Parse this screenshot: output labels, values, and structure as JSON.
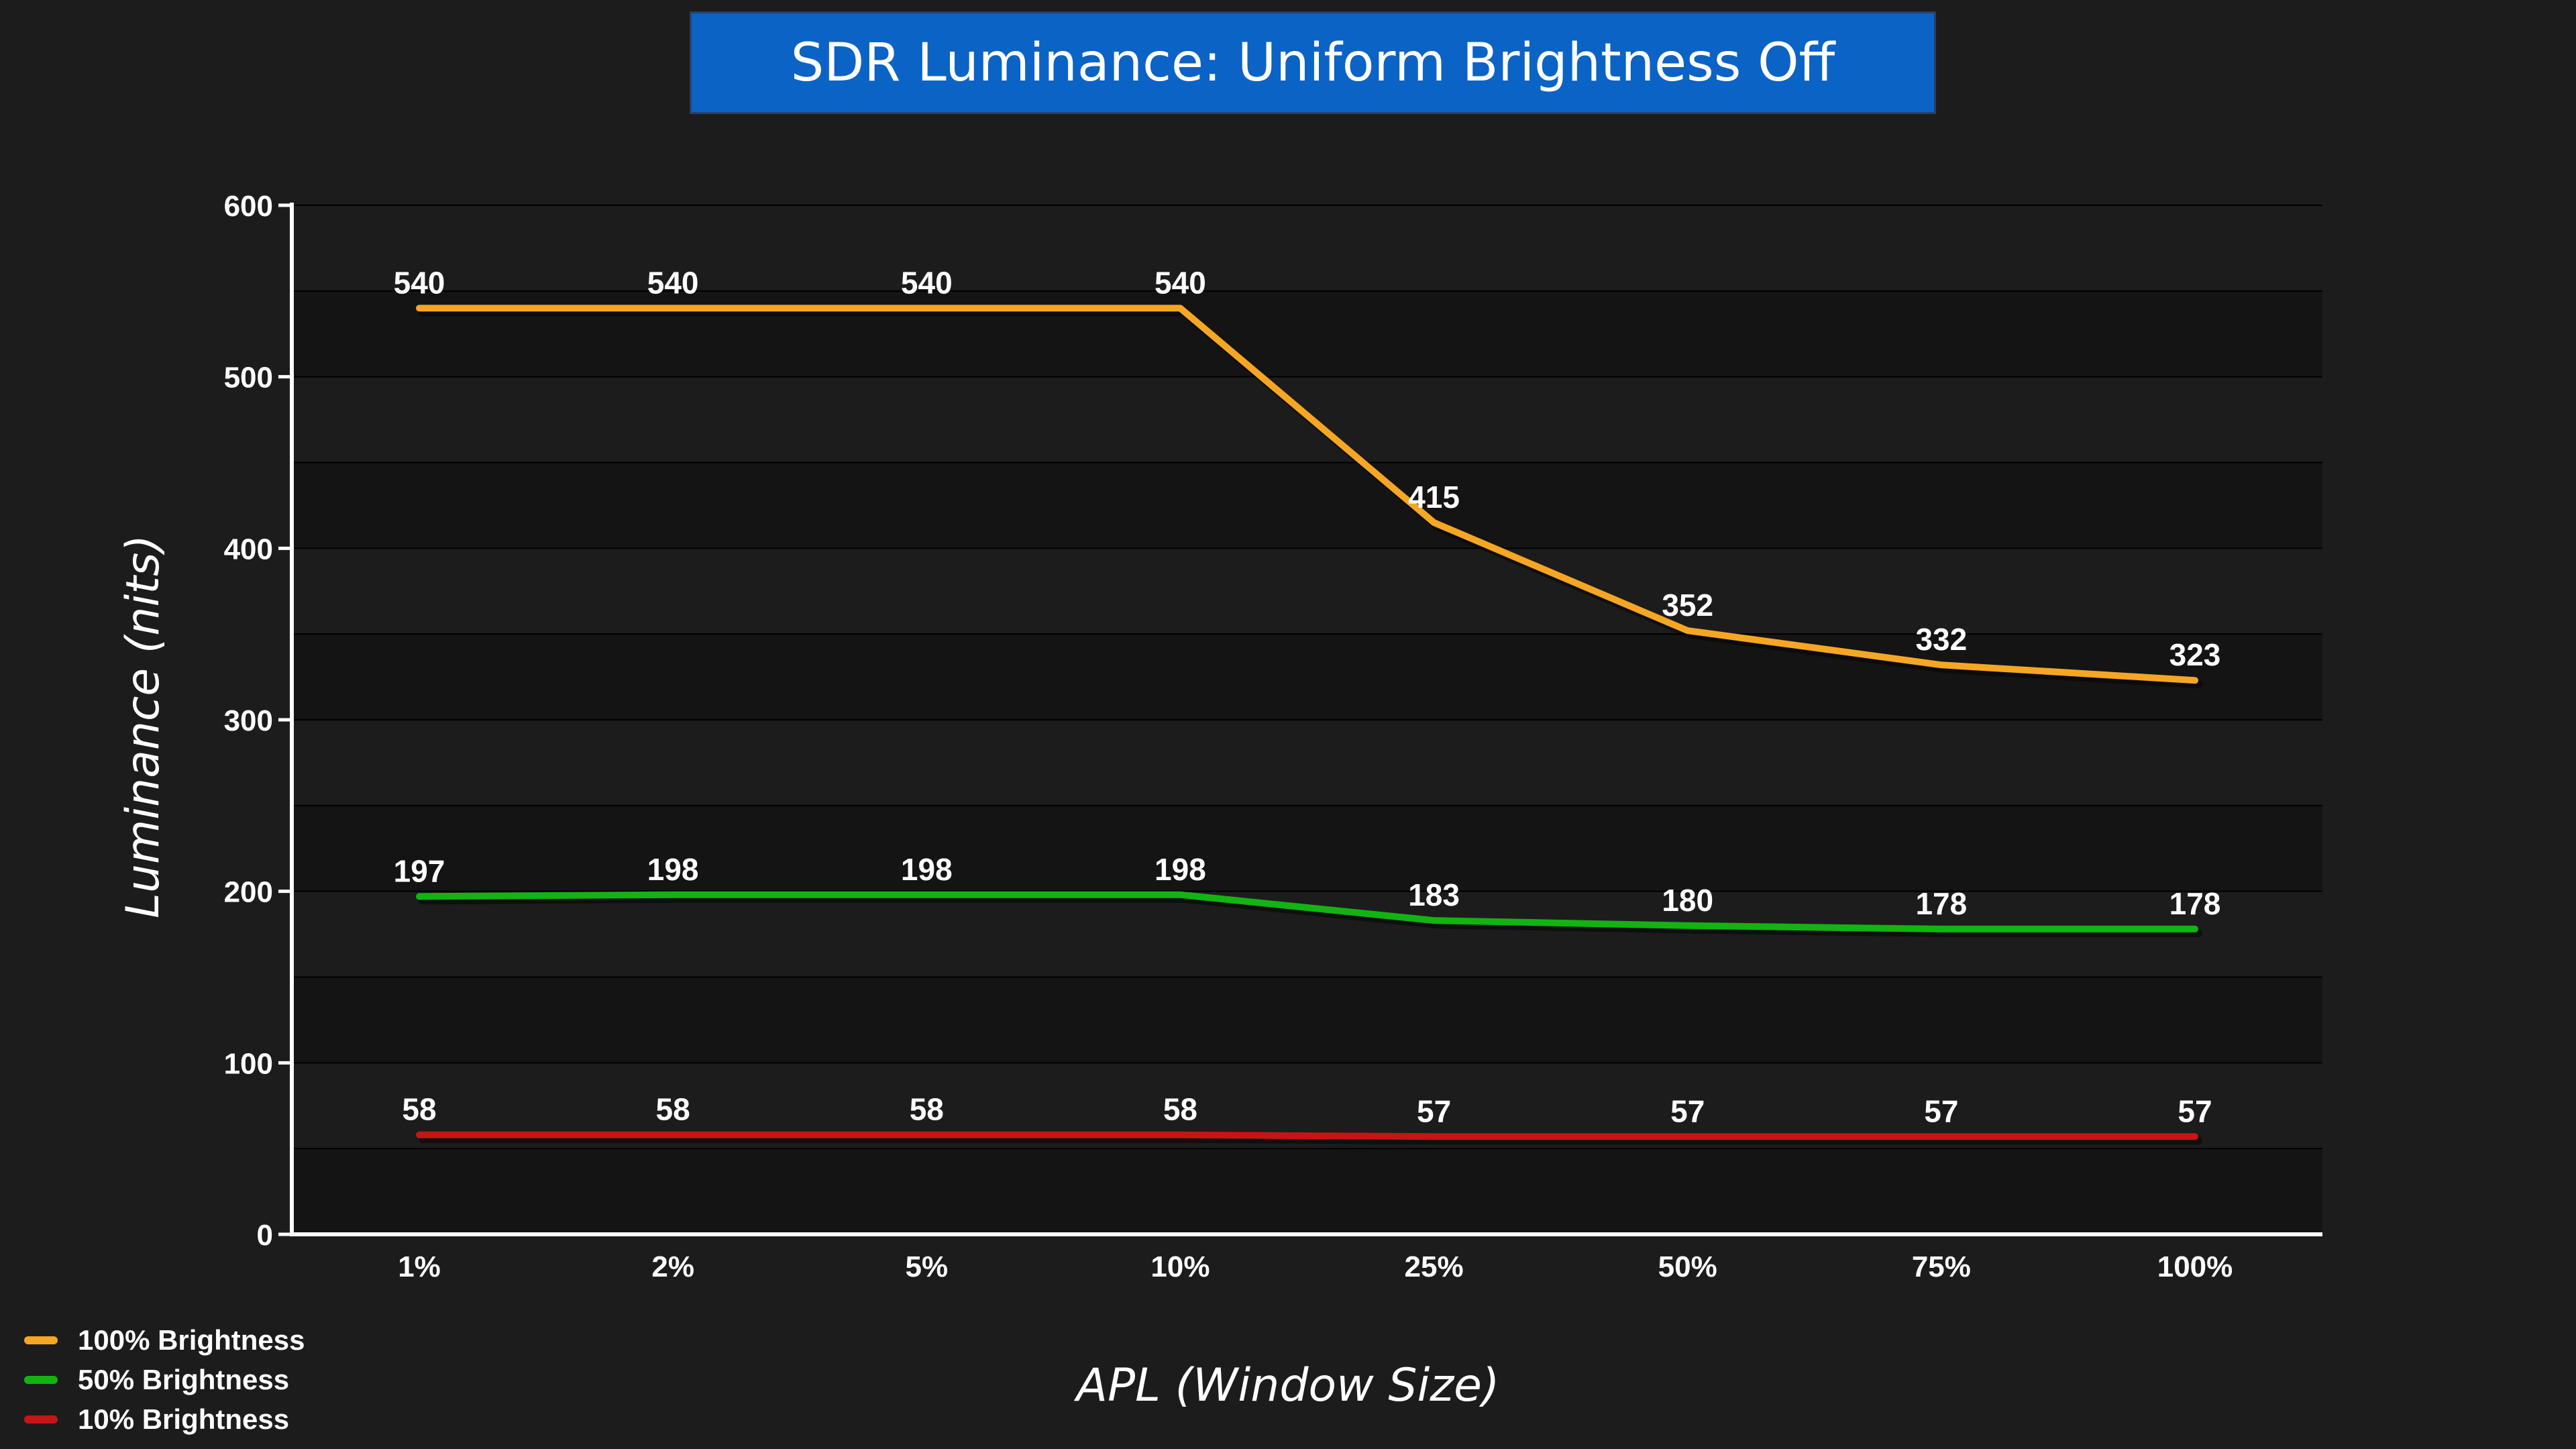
{
  "chart_data": {
    "type": "line",
    "title": "SDR Luminance: Uniform Brightness Off",
    "xlabel": "APL (Window Size)",
    "ylabel": "Luminance (nits)",
    "categories": [
      "1%",
      "2%",
      "5%",
      "10%",
      "25%",
      "50%",
      "75%",
      "100%"
    ],
    "ylim": [
      0,
      600
    ],
    "yticks": [
      "0",
      "100",
      "200",
      "300",
      "400",
      "500",
      "600"
    ],
    "grid": true,
    "legend_position": "bottom-left",
    "series": [
      {
        "name": "100% Brightness",
        "color": "#f5a623",
        "values": [
          540,
          540,
          540,
          540,
          415,
          352,
          332,
          323
        ]
      },
      {
        "name": "50% Brightness",
        "color": "#13b313",
        "values": [
          197,
          198,
          198,
          198,
          183,
          180,
          178,
          178
        ]
      },
      {
        "name": "10% Brightness",
        "color": "#c81414",
        "values": [
          58,
          58,
          58,
          58,
          57,
          57,
          57,
          57
        ]
      }
    ]
  }
}
